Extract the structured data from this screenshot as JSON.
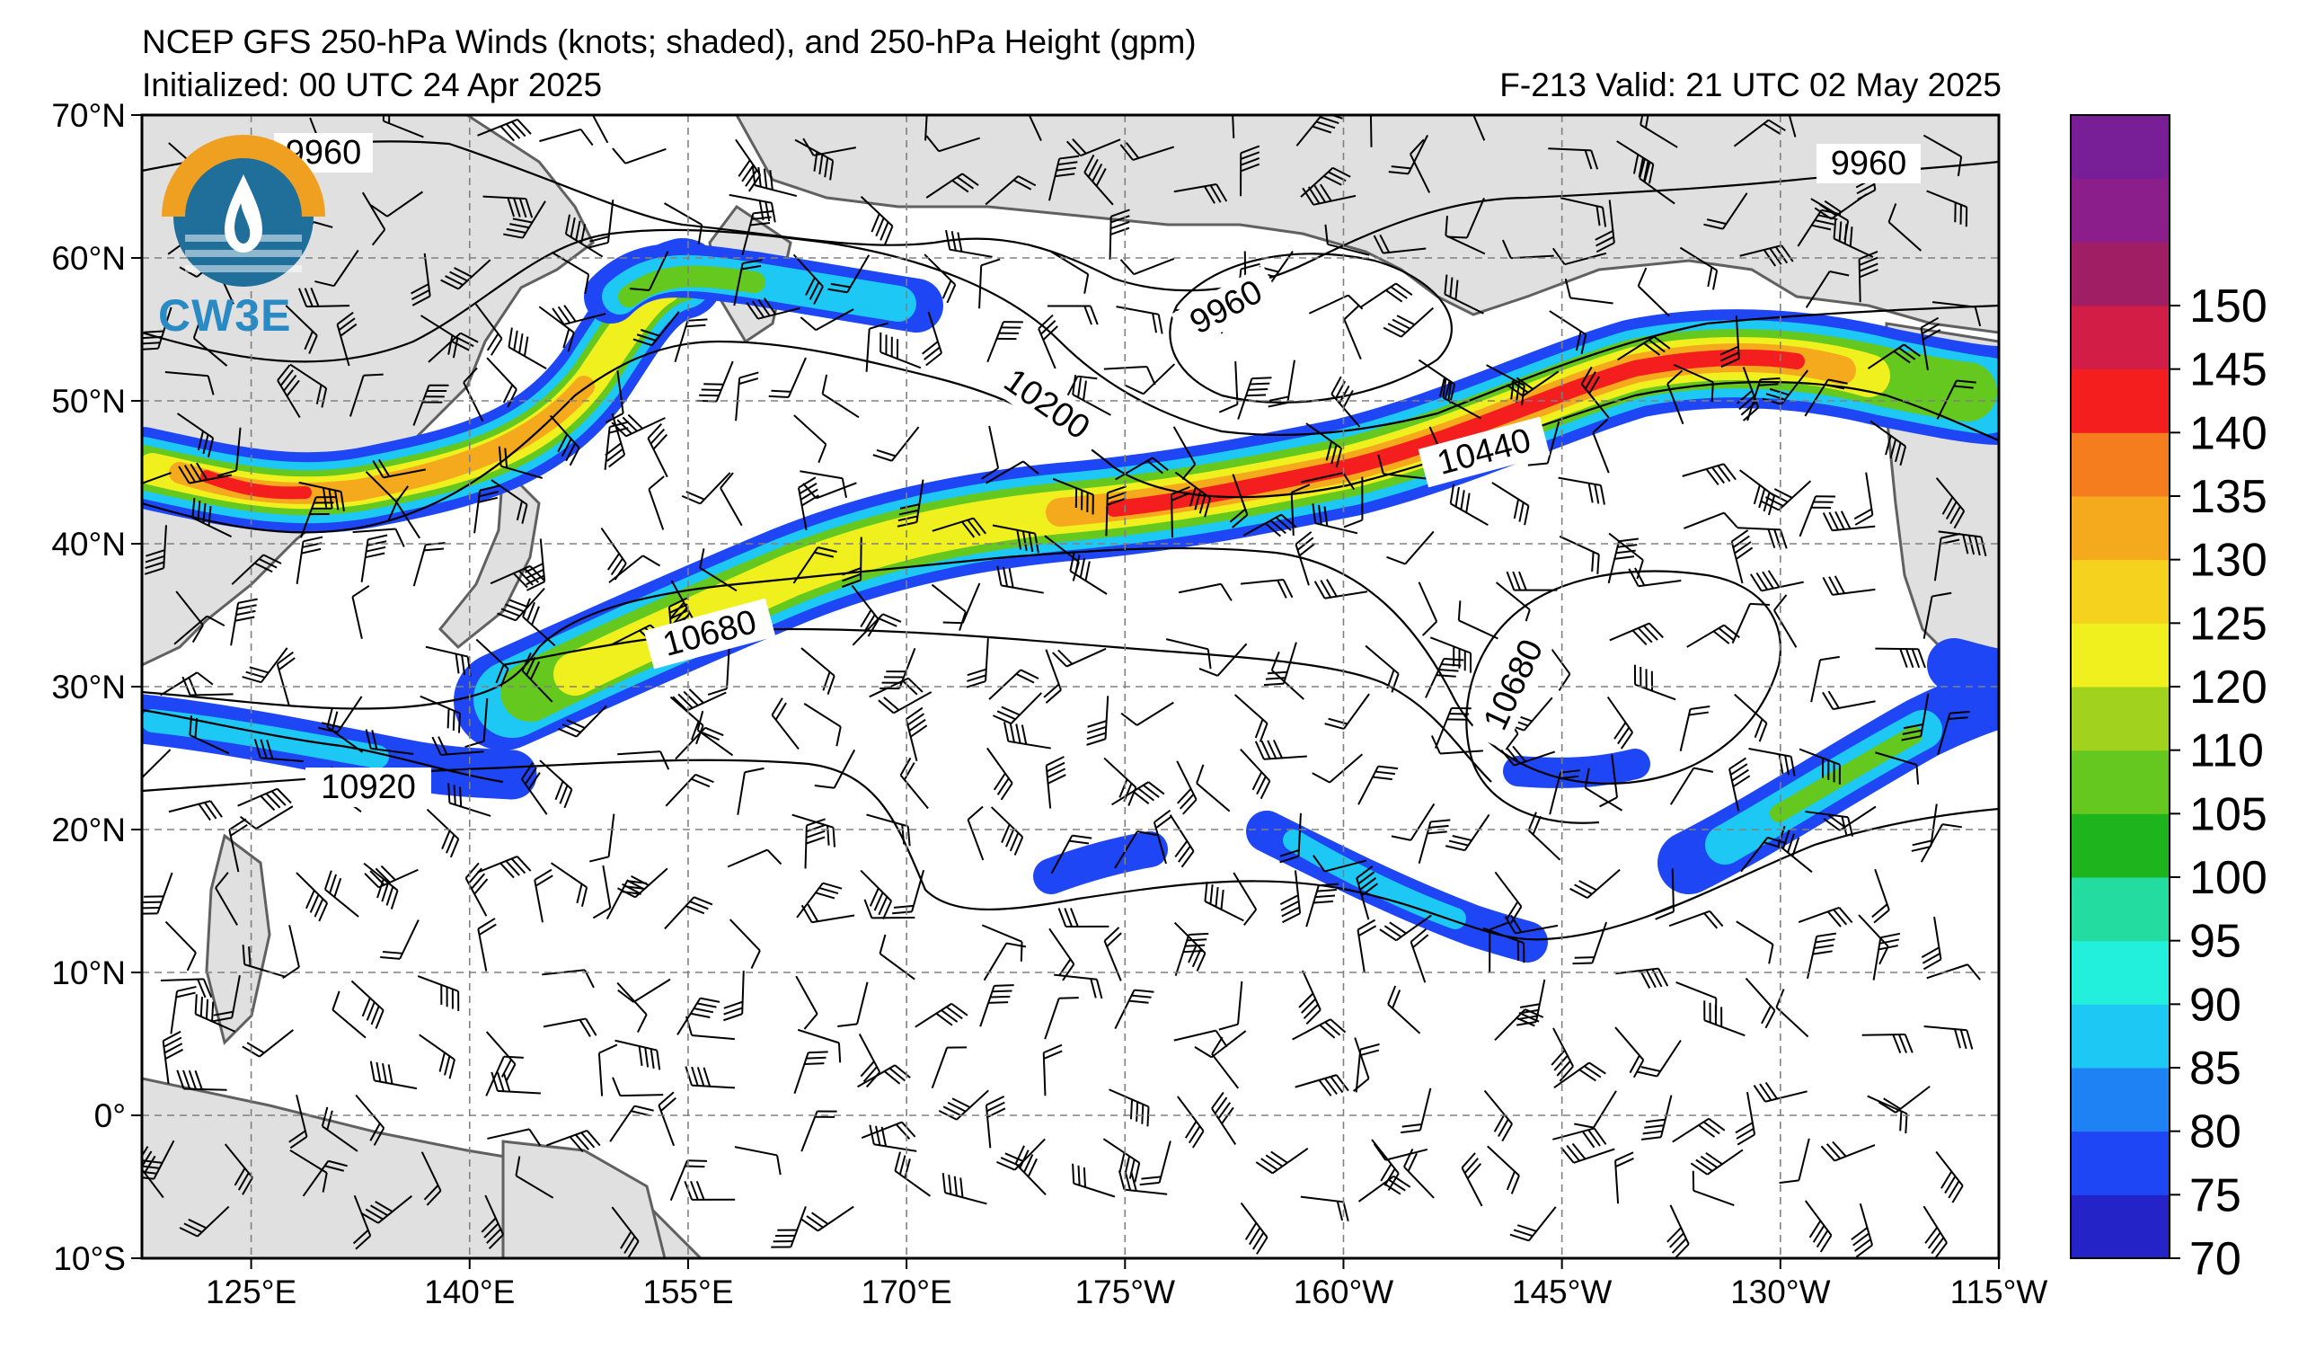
{
  "header": {
    "title": "NCEP GFS 250-hPa Winds (knots; shaded), and 250-hPa Height (gpm)",
    "initialized": "Initialized: 00 UTC 24 Apr 2025",
    "forecast": "F-213  Valid: 21 UTC 02 May 2025"
  },
  "logo": {
    "text": "CW3E",
    "icon": "water-drop-logo-icon"
  },
  "map": {
    "lon_ticks": [
      "125°E",
      "140°E",
      "155°E",
      "170°E",
      "175°W",
      "160°W",
      "145°W",
      "130°W",
      "115°W"
    ],
    "lat_ticks": [
      "70°N",
      "60°N",
      "50°N",
      "40°N",
      "30°N",
      "20°N",
      "10°N",
      "0°",
      "10°S"
    ],
    "contour_labels": [
      "9960",
      "9960",
      "9960",
      "10200",
      "10440",
      "10680",
      "10680",
      "10920"
    ],
    "land_color": "#e0e0e0",
    "coast_color": "#606060",
    "grid": "dashed"
  },
  "colorbar": {
    "units": "knots",
    "levels": [
      70,
      75,
      80,
      85,
      90,
      95,
      100,
      105,
      110,
      120,
      125,
      130,
      135,
      140,
      145,
      150
    ],
    "labels": [
      "70",
      "75",
      "80",
      "85",
      "90",
      "95",
      "100",
      "105",
      "110",
      "120",
      "125",
      "130",
      "135",
      "140",
      "145",
      "150"
    ],
    "colors": [
      "#2323c8",
      "#1e46f5",
      "#1e82f5",
      "#1ec8f5",
      "#23f0dc",
      "#23dca0",
      "#1eb41e",
      "#64c81e",
      "#a0d21e",
      "#f0f01e",
      "#f5d21e",
      "#f5aa1e",
      "#f57d1e",
      "#f51e1e",
      "#d21e46",
      "#a01e64",
      "#8c1e8c",
      "#781e96"
    ]
  }
}
